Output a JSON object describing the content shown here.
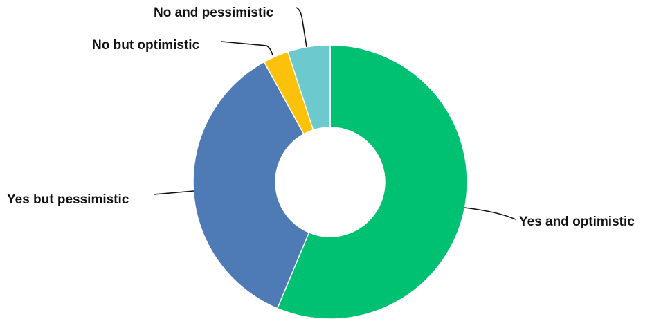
{
  "chart_data": {
    "type": "pie",
    "variant": "donut",
    "title": "",
    "legend": "none",
    "start_angle_deg": 0,
    "direction": "clockwise",
    "slices": [
      {
        "label": "Yes and optimistic",
        "value": 56.3,
        "color": "#00C072"
      },
      {
        "label": "Yes but pessimistic",
        "value": 35.7,
        "color": "#4E7AB5"
      },
      {
        "label": "No but optimistic",
        "value": 3.0,
        "color": "#FBC10B"
      },
      {
        "label": "No and pessimistic",
        "value": 5.0,
        "color": "#6CC9CD"
      }
    ]
  }
}
